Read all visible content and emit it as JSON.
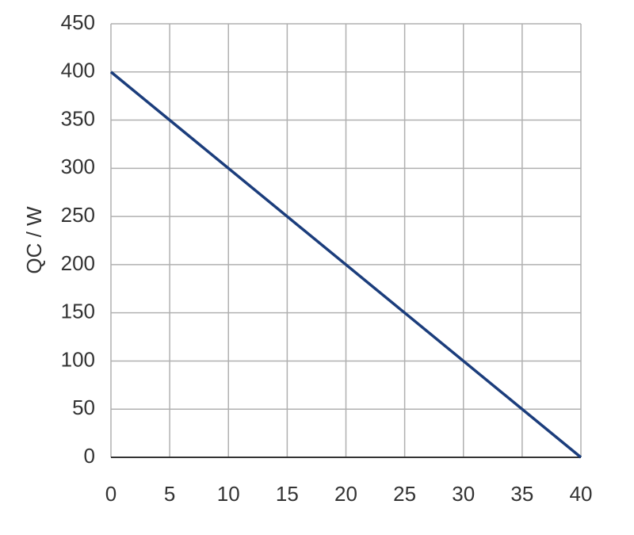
{
  "chart_data": {
    "type": "line",
    "y_label": "QC / W",
    "x": [
      0,
      40
    ],
    "series": [
      {
        "color": "#1b3d7c",
        "values": [
          400,
          0
        ]
      }
    ],
    "xlim": [
      0,
      40
    ],
    "xticks": [
      0,
      5,
      10,
      15,
      20,
      25,
      30,
      35,
      40
    ],
    "ylim": [
      0,
      450
    ],
    "yticks": [
      0,
      50,
      100,
      150,
      200,
      250,
      300,
      350,
      400,
      450
    ],
    "grid": true
  }
}
